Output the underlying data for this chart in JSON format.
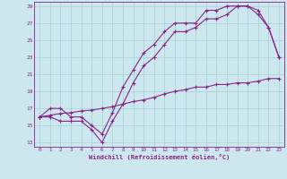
{
  "xlabel": "Windchill (Refroidissement éolien,°C)",
  "background_color": "#cce8ee",
  "grid_color": "#aad4d8",
  "line_color": "#882288",
  "xlim": [
    -0.5,
    23.5
  ],
  "ylim": [
    12.5,
    29.5
  ],
  "yticks": [
    13,
    15,
    17,
    19,
    21,
    23,
    25,
    27,
    29
  ],
  "xticks": [
    0,
    1,
    2,
    3,
    4,
    5,
    6,
    7,
    8,
    9,
    10,
    11,
    12,
    13,
    14,
    15,
    16,
    17,
    18,
    19,
    20,
    21,
    22,
    23
  ],
  "line1_x": [
    0,
    1,
    2,
    3,
    4,
    5,
    6,
    7,
    8,
    9,
    10,
    11,
    12,
    13,
    14,
    15,
    16,
    17,
    18,
    19,
    20,
    21,
    22,
    23
  ],
  "line1_y": [
    16.0,
    17.0,
    17.0,
    16.0,
    16.0,
    15.0,
    14.0,
    16.5,
    19.5,
    21.5,
    23.5,
    24.5,
    26.0,
    27.0,
    27.0,
    27.0,
    28.5,
    28.5,
    29.0,
    29.0,
    29.0,
    28.5,
    26.5,
    23.0
  ],
  "line2_x": [
    0,
    1,
    2,
    3,
    4,
    5,
    6,
    7,
    8,
    9,
    10,
    11,
    12,
    13,
    14,
    15,
    16,
    17,
    18,
    19,
    20,
    21,
    22,
    23
  ],
  "line2_y": [
    16.0,
    16.0,
    15.5,
    15.5,
    15.5,
    14.5,
    13.0,
    15.5,
    17.5,
    20.0,
    22.0,
    23.0,
    24.5,
    26.0,
    26.0,
    26.5,
    27.5,
    27.5,
    28.0,
    29.0,
    29.0,
    28.0,
    26.5,
    23.0
  ],
  "line3_x": [
    0,
    1,
    2,
    3,
    4,
    5,
    6,
    7,
    8,
    9,
    10,
    11,
    12,
    13,
    14,
    15,
    16,
    17,
    18,
    19,
    20,
    21,
    22,
    23
  ],
  "line3_y": [
    16.0,
    16.2,
    16.4,
    16.5,
    16.7,
    16.8,
    17.0,
    17.2,
    17.5,
    17.8,
    18.0,
    18.3,
    18.7,
    19.0,
    19.2,
    19.5,
    19.5,
    19.8,
    19.8,
    20.0,
    20.0,
    20.2,
    20.5,
    20.5
  ]
}
